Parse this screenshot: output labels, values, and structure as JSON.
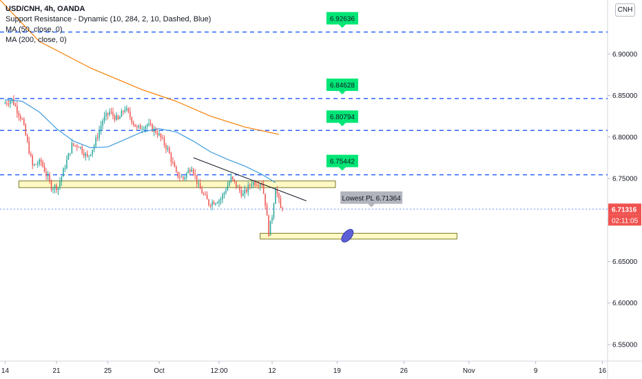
{
  "legend": {
    "symbol": "USD/CNH, 4h, OANDA",
    "indicators": [
      "Support Resistance - Dynamic (10, 284, 2, 10, Dashed, Blue)",
      "MA (50, close, 0)",
      "MA (200, close, 0)"
    ]
  },
  "currency": "CNH",
  "colors": {
    "up": "#26a69a",
    "down": "#ef5350",
    "level": "#2962ff",
    "ma50": "#3a9bdc",
    "ma200": "#f57c00",
    "level_tag": "#00e676",
    "price_tag": "#ef5350",
    "zone_fill": "#fff9c4",
    "zone_border": "#7b7a28",
    "ellipse": "#5c5fd6"
  },
  "chart_data": {
    "type": "candlestick",
    "y_axis": {
      "ticks": [
        6.9,
        6.85,
        6.8,
        6.75,
        6.7,
        6.65,
        6.6,
        6.55
      ],
      "tick_labels": [
        "6.90000",
        "6.85000",
        "6.80000",
        "6.75000",
        "6.70000",
        "6.65000",
        "6.60000",
        "6.55000"
      ],
      "range": [
        6.53,
        6.965
      ]
    },
    "x_axis": {
      "ticks": [
        {
          "label": "14",
          "bar": 0
        },
        {
          "label": "21",
          "bar": 30
        },
        {
          "label": "25",
          "bar": 60
        },
        {
          "label": "Oct",
          "bar": 90
        },
        {
          "label": "12:00",
          "bar": 125
        },
        {
          "label": "12",
          "bar": 156
        },
        {
          "label": "19",
          "bar": 194
        },
        {
          "label": "26",
          "bar": 233
        },
        {
          "label": "Nov",
          "bar": 271
        },
        {
          "label": "9",
          "bar": 310
        },
        {
          "label": "16",
          "bar": 349
        }
      ],
      "range": [
        -3,
        352
      ]
    },
    "ohlc_keypoints": [
      [
        0,
        6.84
      ],
      [
        5,
        6.845
      ],
      [
        11,
        6.82
      ],
      [
        17,
        6.765
      ],
      [
        22,
        6.77
      ],
      [
        28,
        6.74
      ],
      [
        32,
        6.74
      ],
      [
        40,
        6.79
      ],
      [
        44,
        6.79
      ],
      [
        49,
        6.775
      ],
      [
        53,
        6.79
      ],
      [
        58,
        6.82
      ],
      [
        62,
        6.83
      ],
      [
        67,
        6.82
      ],
      [
        71,
        6.835
      ],
      [
        78,
        6.81
      ],
      [
        84,
        6.815
      ],
      [
        90,
        6.805
      ],
      [
        96,
        6.785
      ],
      [
        101,
        6.755
      ],
      [
        105,
        6.75
      ],
      [
        110,
        6.765
      ],
      [
        114,
        6.74
      ],
      [
        120,
        6.72
      ],
      [
        127,
        6.725
      ],
      [
        133,
        6.75
      ],
      [
        140,
        6.73
      ],
      [
        145,
        6.745
      ],
      [
        151,
        6.745
      ],
      [
        153,
        6.72
      ],
      [
        155,
        6.685
      ],
      [
        157,
        6.705
      ],
      [
        159,
        6.74
      ],
      [
        162,
        6.713
      ]
    ],
    "support_resistance_levels": [
      6.92636,
      6.84628,
      6.80794,
      6.75442
    ],
    "level_tags": [
      {
        "label": "6.92636",
        "value": 6.92636,
        "bar": 197
      },
      {
        "label": "6.84628",
        "value": 6.84628,
        "bar": 197
      },
      {
        "label": "6.80794",
        "value": 6.80794,
        "bar": 197
      },
      {
        "label": "6.75442",
        "value": 6.75442,
        "bar": 197
      }
    ],
    "ma50_points": [
      [
        0,
        6.845
      ],
      [
        10,
        6.843
      ],
      [
        20,
        6.83
      ],
      [
        30,
        6.81
      ],
      [
        40,
        6.795
      ],
      [
        50,
        6.787
      ],
      [
        60,
        6.788
      ],
      [
        70,
        6.797
      ],
      [
        80,
        6.806
      ],
      [
        90,
        6.81
      ],
      [
        100,
        6.806
      ],
      [
        110,
        6.795
      ],
      [
        120,
        6.782
      ],
      [
        130,
        6.773
      ],
      [
        140,
        6.765
      ],
      [
        150,
        6.755
      ],
      [
        158,
        6.745
      ]
    ],
    "ma200_points": [
      [
        -3,
        6.965
      ],
      [
        20,
        6.915
      ],
      [
        50,
        6.883
      ],
      [
        80,
        6.857
      ],
      [
        100,
        6.843
      ],
      [
        120,
        6.825
      ],
      [
        140,
        6.812
      ],
      [
        160,
        6.803
      ]
    ],
    "trendline": {
      "from": [
        110,
        6.775
      ],
      "to": [
        176,
        6.723
      ]
    },
    "zones": [
      {
        "from_bar": 8,
        "to_bar": 193,
        "top": 6.747,
        "bottom": 6.739
      },
      {
        "from_bar": 149,
        "to_bar": 264,
        "top": 6.684,
        "bottom": 6.677
      }
    ],
    "ellipse": {
      "bar": 200,
      "value": 6.681
    },
    "current_price": {
      "value": 6.71316,
      "label": "6.71316",
      "countdown": "02:11:05"
    },
    "lowest_pl": {
      "label": "Lowest PL  6.71364",
      "value": 6.71364,
      "bar": 214
    }
  }
}
